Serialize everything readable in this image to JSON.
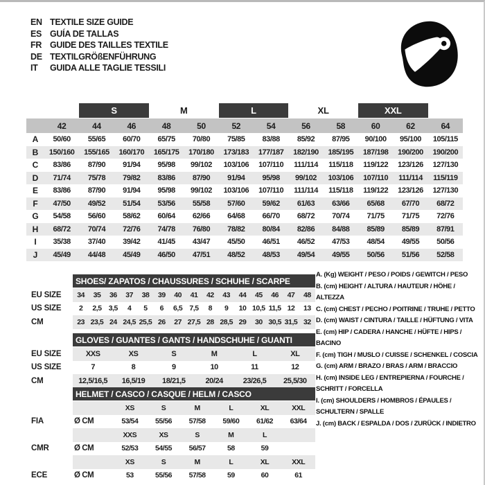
{
  "header": {
    "languages": [
      {
        "code": "EN",
        "label": "TEXTILE SIZE GUIDE"
      },
      {
        "code": "ES",
        "label": "GUÍA DE TALLAS"
      },
      {
        "code": "FR",
        "label": "GUIDE DES TAILLES TEXTILE"
      },
      {
        "code": "DE",
        "label": "TEXTILGRÖßENFÜHRUNG"
      },
      {
        "code": "IT",
        "label": "GUIDA ALLE TAGLIE TESSILI"
      }
    ],
    "helmet_icon": "racing-helmet-icon"
  },
  "colors": {
    "dark_bar": "#3b3b3b",
    "column_band": "#c3c3c3",
    "row_stripe": "#e8e8e8",
    "helmet_black": "#0c0c0c"
  },
  "textile": {
    "size_groups": [
      {
        "label": "S",
        "boxed": true,
        "columns": [
          "44",
          "46"
        ]
      },
      {
        "label": "M",
        "boxed": false,
        "columns": [
          "48",
          "50"
        ]
      },
      {
        "label": "L",
        "boxed": true,
        "columns": [
          "52",
          "54"
        ]
      },
      {
        "label": "XL",
        "boxed": false,
        "columns": [
          "56",
          "58"
        ]
      },
      {
        "label": "XXL",
        "boxed": true,
        "columns": [
          "60",
          "62"
        ]
      }
    ],
    "columns": [
      "42",
      "44",
      "46",
      "48",
      "50",
      "52",
      "54",
      "56",
      "58",
      "60",
      "62",
      "64"
    ],
    "rows": [
      {
        "label": "A",
        "values": [
          "50/60",
          "55/65",
          "60/70",
          "65/75",
          "70/80",
          "75/85",
          "83/88",
          "85/92",
          "87/95",
          "90/100",
          "95/100",
          "105/115"
        ]
      },
      {
        "label": "B",
        "values": [
          "150/160",
          "155/165",
          "160/170",
          "165/175",
          "170/180",
          "173/183",
          "177/187",
          "182/190",
          "185/195",
          "187/198",
          "190/200",
          "190/200"
        ]
      },
      {
        "label": "C",
        "values": [
          "83/86",
          "87/90",
          "91/94",
          "95/98",
          "99/102",
          "103/106",
          "107/110",
          "111/114",
          "115/118",
          "119/122",
          "123/126",
          "127/130"
        ]
      },
      {
        "label": "D",
        "values": [
          "71/74",
          "75/78",
          "79/82",
          "83/86",
          "87/90",
          "91/94",
          "95/98",
          "99/102",
          "103/106",
          "107/110",
          "111/114",
          "115/119"
        ]
      },
      {
        "label": "E",
        "values": [
          "83/86",
          "87/90",
          "91/94",
          "95/98",
          "99/102",
          "103/106",
          "107/110",
          "111/114",
          "115/118",
          "119/122",
          "123/126",
          "127/130"
        ]
      },
      {
        "label": "F",
        "values": [
          "47/50",
          "49/52",
          "51/54",
          "53/56",
          "55/58",
          "57/60",
          "59/62",
          "61/63",
          "63/66",
          "65/68",
          "67/70",
          "68/72"
        ]
      },
      {
        "label": "G",
        "values": [
          "54/58",
          "56/60",
          "58/62",
          "60/64",
          "62/66",
          "64/68",
          "66/70",
          "68/72",
          "70/74",
          "71/75",
          "71/75",
          "72/76"
        ]
      },
      {
        "label": "H",
        "values": [
          "68/72",
          "70/74",
          "72/76",
          "74/78",
          "76/80",
          "78/82",
          "80/84",
          "82/86",
          "84/88",
          "85/89",
          "85/89",
          "87/91"
        ]
      },
      {
        "label": "I",
        "values": [
          "35/38",
          "37/40",
          "39/42",
          "41/45",
          "43/47",
          "45/50",
          "46/51",
          "46/52",
          "47/53",
          "48/54",
          "49/55",
          "50/56"
        ]
      },
      {
        "label": "J",
        "values": [
          "45/49",
          "44/48",
          "45/49",
          "46/50",
          "47/51",
          "48/52",
          "48/53",
          "49/54",
          "49/55",
          "50/56",
          "51/56",
          "52/58"
        ]
      }
    ]
  },
  "shoes": {
    "title": "SHOES/ ZAPATOS / CHAUSSURES / SCHUHE / SCARPE",
    "rows": [
      {
        "label": "EU SIZE",
        "shaded": true,
        "cells": [
          "34",
          "35",
          "36",
          "37",
          "38",
          "39",
          "40",
          "41",
          "42",
          "43",
          "44",
          "45",
          "46",
          "47",
          "48"
        ]
      },
      {
        "label": "US SIZE",
        "shaded": false,
        "cells": [
          "2",
          "2,5",
          "3,5",
          "4",
          "5",
          "6",
          "6,5",
          "7,5",
          "8",
          "9",
          "10",
          "10,5",
          "11,5",
          "12",
          "13"
        ]
      },
      {
        "label": "CM",
        "shaded": true,
        "cells": [
          "23",
          "23,5",
          "24",
          "24,5",
          "25,5",
          "26",
          "27",
          "27,5",
          "28",
          "28,5",
          "29",
          "30",
          "30,5",
          "31,5",
          "32"
        ]
      }
    ]
  },
  "gloves": {
    "title": "GLOVES / GUANTES / GANTS / HANDSCHUHE / GUANTI",
    "rows": [
      {
        "label": "EU SIZE",
        "shaded": true,
        "cells": [
          "XXS",
          "XS",
          "S",
          "M",
          "L",
          "XL"
        ]
      },
      {
        "label": "US SIZE",
        "shaded": false,
        "cells": [
          "7",
          "8",
          "9",
          "10",
          "11",
          "12"
        ]
      },
      {
        "label": "CM",
        "shaded": true,
        "cells": [
          "12,5/16,5",
          "16,5/19",
          "18/21,5",
          "20/24",
          "23/26,5",
          "25,5/30"
        ]
      }
    ]
  },
  "helmet": {
    "title": "HELMET / CASCO / CASQUE / HELM / CASCO",
    "cm_label": "Ø CM",
    "standards": [
      {
        "label": "FIA",
        "sizes": [
          "XS",
          "S",
          "M",
          "L",
          "XL",
          "XXL"
        ],
        "cm": [
          "53/54",
          "55/56",
          "57/58",
          "59/60",
          "61/62",
          "63/64"
        ]
      },
      {
        "label": "CMR",
        "sizes": [
          "XXS",
          "XS",
          "S",
          "M",
          "L"
        ],
        "cm": [
          "52/53",
          "54/55",
          "56/57",
          "58",
          "59"
        ]
      },
      {
        "label": "ECE",
        "sizes": [
          "XS",
          "S",
          "M",
          "L",
          "XL",
          "XXL"
        ],
        "cm": [
          "53",
          "55/56",
          "57/58",
          "59",
          "60",
          "61"
        ]
      }
    ]
  },
  "legend": {
    "items": [
      "A. (Kg) WEIGHT / PESO / POIDS / GEWITCH / PESO",
      "B. (cm) HEIGHT / ALTURA / HAUTEUR / HÖHE / ALTEZZA",
      "C. (cm) CHEST / PECHO / POITRINE / TRUHE / PETTO",
      "D. (cm) WAIST / CINTURA / TAILLE / HÜFTUNG / VITA",
      "E. (cm) HIP / CADERA / HANCHE / HÜFTE / HIPS / BACINO",
      "F. (cm) TIGH / MUSLO / CUISSE / SCHENKEL / COSCIA",
      "G. (cm) ARM / BRAZO / BRAS / ARM / BRACCIO",
      "H. (cm) INSIDE LEG / ENTREPIERNA / FOURCHE / SCHRITT / FORCELLA",
      "I. (cm) SHOULDERS / HOMBROS / ÉPAULES / SCHULTERN / SPALLE",
      "J. (cm) BACK / ESPALDA / DOS / ZURÜCK / INDIETRO"
    ]
  }
}
